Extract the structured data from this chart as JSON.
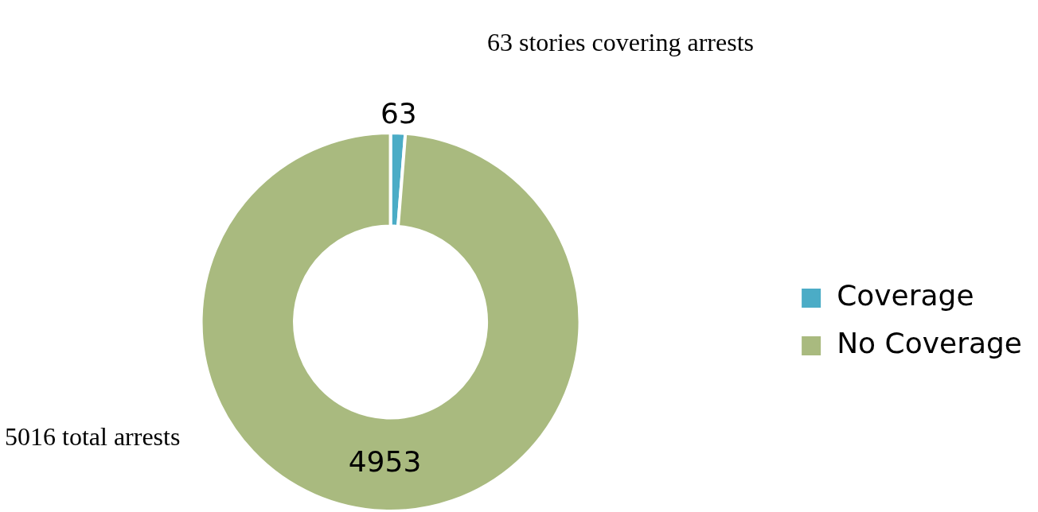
{
  "chart_data": {
    "type": "donut",
    "categories": [
      "Coverage",
      "No Coverage"
    ],
    "values": [
      63,
      4953
    ],
    "colors": [
      "#4bacc6",
      "#a9ba7f"
    ],
    "data_labels": true,
    "legend": "right",
    "annotations": [
      "63 stories covering arrests",
      "5016 total arrests"
    ]
  }
}
